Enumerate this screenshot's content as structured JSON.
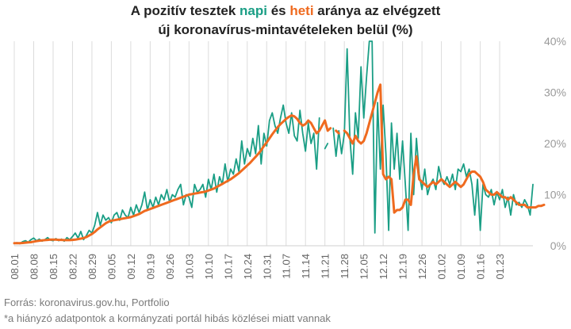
{
  "title": {
    "part1": "A pozitív tesztek ",
    "napi": "napi",
    "part2": " és ",
    "heti": "heti",
    "part3": " aránya az  elvégzett",
    "line2": "új koronavírus-mintavételeken belül (%)"
  },
  "footer": {
    "source": "Forrás: koronavirus.gov.hu, Portfolio",
    "note": "*a hiányzó adatpontok a kormányzati portál hibás közlései miatt vannak"
  },
  "chart_data": {
    "type": "line",
    "y_ticks": [
      "0%",
      "10%",
      "20%",
      "30%",
      "40%"
    ],
    "ylim": [
      0,
      40
    ],
    "x_ticks": [
      "08.01",
      "08.08",
      "08.15",
      "08.22",
      "08.29",
      "09.05",
      "09.12",
      "09.19",
      "09.26",
      "10.03",
      "10.10",
      "10.17",
      "10.24",
      "10.31",
      "11.07",
      "11.14",
      "11.21",
      "11.28",
      "12.05",
      "12.12",
      "12.19",
      "12.26",
      "01.02",
      "01.09",
      "01.16",
      "01.23"
    ],
    "x_start": "08.01",
    "x_end": "01.28",
    "grid": "vertical",
    "colors": {
      "napi": "#1a9e85",
      "heti": "#ef6a1f"
    },
    "series": [
      {
        "id": "napi",
        "values": [
          0.5,
          0.6,
          0.4,
          0.8,
          1.0,
          0.7,
          1.2,
          1.5,
          1.0,
          1.3,
          0.9,
          1.2,
          1.6,
          1.1,
          1.0,
          1.4,
          1.0,
          1.3,
          0.9,
          1.6,
          1.2,
          1.8,
          2.5,
          1.5,
          2.8,
          1.2,
          2.0,
          3.0,
          2.5,
          4.0,
          6.5,
          4.0,
          6.0,
          5.0,
          5.5,
          4.5,
          6.0,
          6.5,
          5.0,
          7.0,
          6.0,
          5.5,
          7.5,
          6.0,
          8.0,
          6.5,
          8.0,
          10.5,
          7.0,
          9.0,
          7.5,
          9.5,
          8.0,
          10.0,
          9.0,
          11.0,
          8.5,
          10.0,
          9.5,
          11.0,
          12.0,
          8.0,
          10.0,
          9.5,
          7.5,
          12.0,
          10.5,
          11.0,
          12.0,
          9.5,
          13.0,
          11.0,
          14.0,
          10.5,
          13.5,
          12.0,
          16.0,
          12.5,
          15.0,
          14.0,
          17.0,
          14.5,
          20.5,
          16.0,
          19.0,
          17.5,
          21.0,
          18.0,
          23.5,
          16.0,
          22.0,
          19.5,
          24.5,
          26.0,
          23.5,
          22.0,
          25.0,
          27.5,
          24.0,
          22.0,
          26.0,
          21.5,
          20.5,
          26.5,
          22.0,
          18.5,
          24.0,
          20.0,
          22.0,
          15.0,
          25.0,
          null,
          19.0,
          20.0,
          null,
          23.0,
          17.5,
          22.5,
          18.0,
          22.0,
          38.5,
          21.0,
          14.0,
          26.0,
          21.0,
          35.0,
          25.0,
          33.0,
          40.0,
          40.0,
          2.5,
          28.0,
          15.0,
          27.5,
          18.0,
          3.0,
          24.0,
          15.0,
          22.0,
          13.0,
          20.5,
          12.0,
          3.0,
          22.0,
          10.0,
          21.0,
          14.0,
          11.0,
          15.0,
          10.0,
          12.0,
          13.0,
          11.0,
          15.5,
          13.0,
          12.0,
          13.5,
          12.0,
          14.0,
          11.0,
          15.0,
          14.5,
          16.0,
          13.5,
          15.0,
          12.0,
          6.0,
          13.0,
          3.0,
          12.0,
          10.0,
          9.5,
          11.0,
          8.0,
          10.5,
          9.0,
          11.0,
          7.5,
          9.5,
          6.0,
          10.0,
          8.0,
          8.5,
          7.5,
          9.0,
          8.0,
          6.0,
          12.0
        ],
        "color": "#1a9e85"
      },
      {
        "id": "heti",
        "values": [
          0.5,
          0.5,
          0.5,
          0.55,
          0.6,
          0.65,
          0.7,
          0.8,
          0.9,
          1.0,
          1.05,
          1.1,
          1.15,
          1.2,
          1.2,
          1.2,
          1.15,
          1.15,
          1.1,
          1.1,
          1.1,
          1.15,
          1.2,
          1.3,
          1.4,
          1.5,
          1.7,
          2.0,
          2.3,
          2.7,
          3.2,
          3.6,
          4.0,
          4.4,
          4.7,
          4.9,
          5.0,
          5.1,
          5.2,
          5.3,
          5.4,
          5.5,
          5.6,
          5.8,
          6.0,
          6.2,
          6.5,
          6.8,
          7.0,
          7.2,
          7.4,
          7.6,
          7.8,
          8.0,
          8.2,
          8.4,
          8.6,
          8.8,
          9.0,
          9.2,
          9.4,
          9.6,
          9.8,
          10.0,
          10.1,
          10.2,
          10.3,
          10.4,
          10.5,
          10.6,
          10.8,
          11.0,
          11.2,
          11.5,
          11.8,
          12.1,
          12.4,
          12.7,
          13.0,
          13.4,
          13.8,
          14.2,
          14.7,
          15.2,
          15.7,
          16.2,
          16.8,
          17.4,
          18.0,
          18.7,
          19.5,
          20.2,
          21.0,
          21.8,
          22.5,
          23.2,
          23.8,
          24.3,
          24.8,
          25.2,
          25.5,
          25.3,
          24.8,
          24.0,
          23.5,
          23.8,
          24.5,
          24.0,
          23.0,
          22.0,
          22.5,
          23.5,
          24.5,
          22.5,
          23.0,
          null,
          22.5,
          22.0,
          null,
          22.5,
          22.0,
          21.0,
          20.0,
          21.5,
          20.5,
          20.0,
          20.5,
          22.0,
          24.0,
          26.0,
          28.0,
          30.0,
          31.5,
          14.0,
          13.0,
          13.5,
          13.0,
          6.5,
          7.0,
          7.0,
          7.5,
          9.0,
          9.0,
          8.0,
          14.0,
          17.5,
          13.0,
          12.5,
          12.0,
          11.5,
          12.0,
          12.5,
          12.0,
          12.5,
          13.0,
          12.5,
          12.0,
          11.5,
          12.0,
          12.5,
          12.0,
          11.5,
          12.0,
          13.0,
          14.0,
          14.5,
          14.5,
          14.0,
          13.5,
          12.5,
          11.0,
          10.5,
          10.0,
          10.0,
          10.5,
          10.0,
          9.5,
          9.5,
          9.0,
          9.5,
          9.0,
          8.5,
          8.0,
          8.0,
          8.0,
          7.5,
          7.5,
          7.5,
          7.5,
          7.8,
          7.8,
          8.0
        ],
        "color": "#ef6a1f"
      }
    ]
  }
}
